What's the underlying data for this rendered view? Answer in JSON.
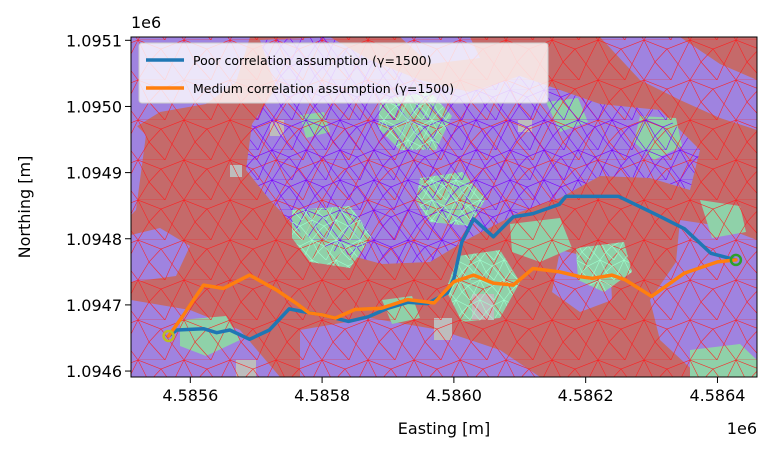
{
  "chart_data": {
    "type": "line",
    "xlabel": "Easting [m]",
    "ylabel": "Northing [m]",
    "x_offset_label": "1e6",
    "y_offset_label": "1e6",
    "xlim": [
      4.58551,
      4.58646
    ],
    "ylim": [
      1.094591,
      1.095105
    ],
    "x_ticks": [
      {
        "value": 4.5856,
        "label": "4.5856"
      },
      {
        "value": 4.5858,
        "label": "4.5858"
      },
      {
        "value": 4.586,
        "label": "4.5860"
      },
      {
        "value": 4.5862,
        "label": "4.5862"
      },
      {
        "value": 4.5864,
        "label": "4.5864"
      }
    ],
    "y_ticks": [
      {
        "value": 1.0946,
        "label": "1.0946"
      },
      {
        "value": 1.0947,
        "label": "1.0947"
      },
      {
        "value": 1.0948,
        "label": "1.0948"
      },
      {
        "value": 1.0949,
        "label": "1.0949"
      },
      {
        "value": 1.095,
        "label": "1.0950"
      },
      {
        "value": 1.0951,
        "label": "1.0951"
      }
    ],
    "legend_position": "top-left",
    "start_point": {
      "x": 4.585567,
      "y": 1.094653,
      "color": "#bcbd22"
    },
    "end_point": {
      "x": 4.586428,
      "y": 1.094768,
      "color": "#2ca02c"
    },
    "series": [
      {
        "name": "Poor correlation assumption (γ=1500)",
        "color": "#1f77b4",
        "x": [
          4.585567,
          4.58558,
          4.58562,
          4.58564,
          4.58566,
          4.58569,
          4.58572,
          4.58575,
          4.58577,
          4.5858,
          4.58584,
          4.58587,
          4.5859,
          4.58593,
          4.58596,
          4.58599,
          4.586,
          4.586012,
          4.58603,
          4.58606,
          4.58609,
          4.58612,
          4.58616,
          4.58617,
          4.58621,
          4.58625,
          4.58631,
          4.58635,
          4.58639,
          4.586428
        ],
        "y": [
          1.094653,
          1.094662,
          1.094664,
          1.094658,
          1.094662,
          1.094648,
          1.094662,
          1.094694,
          1.09469,
          1.094685,
          1.094675,
          1.094682,
          1.094695,
          1.094704,
          1.094702,
          1.094718,
          1.09474,
          1.094795,
          1.09483,
          1.094803,
          1.094833,
          1.094838,
          1.094852,
          1.094864,
          1.094864,
          1.094864,
          1.094835,
          1.094815,
          1.094778,
          1.094768
        ]
      },
      {
        "name": "Medium correlation assumption (γ=1500)",
        "color": "#ff7f0e",
        "x": [
          4.585567,
          4.58559,
          4.58562,
          4.58565,
          4.58569,
          4.58573,
          4.58576,
          4.58578,
          4.5858,
          4.58582,
          4.58585,
          4.58589,
          4.58593,
          4.58597,
          4.586,
          4.58603,
          4.58606,
          4.58609,
          4.58612,
          4.58616,
          4.58619,
          4.58621,
          4.58624,
          4.58626,
          4.5863,
          4.58635,
          4.5864,
          4.586428
        ],
        "y": [
          1.094653,
          1.094685,
          1.09473,
          1.094725,
          1.094745,
          1.094723,
          1.094703,
          1.094688,
          1.094685,
          1.09468,
          1.094693,
          1.094695,
          1.094708,
          1.094703,
          1.094735,
          1.094745,
          1.094733,
          1.09473,
          1.094755,
          1.09475,
          1.094743,
          1.09474,
          1.094745,
          1.094738,
          1.094713,
          1.094748,
          1.094765,
          1.094768
        ]
      }
    ]
  }
}
